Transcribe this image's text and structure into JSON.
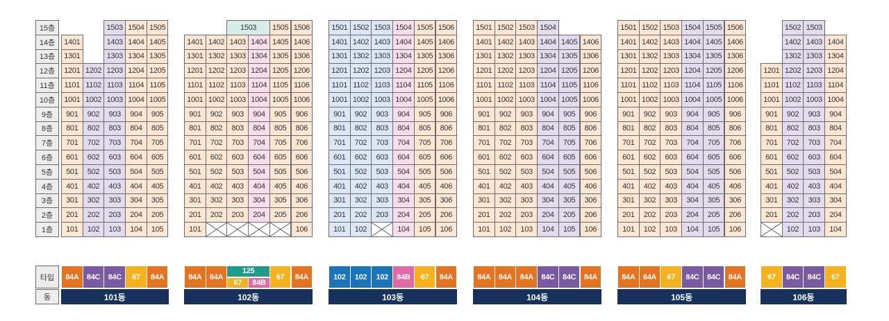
{
  "floor_labels": [
    "15층",
    "14층",
    "13층",
    "12층",
    "11층",
    "10층",
    "9층",
    "8층",
    "7층",
    "6층",
    "5층",
    "4층",
    "3층",
    "2층",
    "1층"
  ],
  "type_row_label": "타입",
  "dong_row_label": "동",
  "colors": {
    "84A": "#e4741f",
    "84C": "#7a5aa0",
    "67": "#f5b21c",
    "84B": "#e06aa7",
    "102": "#1b73b8",
    "125": "#1f9b8b",
    "peach": "#fde6d2",
    "lavender": "#e3dcef",
    "blue": "#dbe7f5",
    "pink": "#f8dded",
    "teal": "#d8ecea"
  },
  "buildings": [
    {
      "dong_label": "101동",
      "columns": [
        {
          "type": "84A",
          "units": [
            "",
            "1401",
            "1301",
            "1201",
            "1101",
            "1001",
            "901",
            "801",
            "701",
            "601",
            "501",
            "401",
            "301",
            "201",
            "101"
          ]
        },
        {
          "type": "84C",
          "units": [
            "",
            "",
            "",
            "1202",
            "1102",
            "1002",
            "902",
            "802",
            "702",
            "602",
            "502",
            "402",
            "302",
            "202",
            "102"
          ]
        },
        {
          "type": "84C",
          "units": [
            "1503",
            "1403",
            "1303",
            "1203",
            "1103",
            "1003",
            "903",
            "803",
            "703",
            "603",
            "503",
            "403",
            "303",
            "203",
            "103"
          ]
        },
        {
          "type": "67",
          "units": [
            "1504",
            "1404",
            "1304",
            "1204",
            "1104",
            "1004",
            "904",
            "804",
            "704",
            "604",
            "504",
            "404",
            "304",
            "204",
            "104"
          ]
        },
        {
          "type": "84A",
          "units": [
            "1505",
            "1405",
            "1305",
            "1205",
            "1105",
            "1005",
            "905",
            "805",
            "705",
            "605",
            "505",
            "405",
            "305",
            "205",
            "105"
          ]
        }
      ]
    },
    {
      "dong_label": "102동",
      "columns": [
        {
          "type": "84A",
          "units": [
            "",
            "1401",
            "1301",
            "1201",
            "1101",
            "1001",
            "901",
            "801",
            "701",
            "601",
            "501",
            "401",
            "301",
            "201",
            "101"
          ]
        },
        {
          "type": "84A",
          "units": [
            "",
            "1402",
            "1302",
            "1202",
            "1102",
            "1002",
            "902",
            "802",
            "702",
            "602",
            "502",
            "402",
            "302",
            "202",
            "X"
          ]
        },
        {
          "type": "67",
          "units": [
            "",
            "1403",
            "1303",
            "1203",
            "1103",
            "1003",
            "903",
            "803",
            "703",
            "603",
            "503",
            "403",
            "303",
            "203",
            "X"
          ]
        },
        {
          "type": "84B",
          "units": [
            "",
            "1404",
            "1304",
            "1204",
            "1104",
            "1004",
            "904",
            "804",
            "704",
            "604",
            "504",
            "404",
            "304",
            "204",
            "X"
          ]
        },
        {
          "type": "67",
          "units": [
            "1505",
            "1405",
            "1305",
            "1205",
            "1105",
            "1005",
            "905",
            "805",
            "705",
            "605",
            "505",
            "405",
            "305",
            "205",
            "X"
          ]
        },
        {
          "type": "84A",
          "units": [
            "1506",
            "1406",
            "1306",
            "1206",
            "1106",
            "1006",
            "906",
            "806",
            "706",
            "606",
            "506",
            "406",
            "306",
            "206",
            "106"
          ]
        }
      ],
      "merged_top": {
        "label": "1503",
        "type": "125"
      },
      "merged_type": {
        "label": "125"
      }
    },
    {
      "dong_label": "103동",
      "columns": [
        {
          "type": "102",
          "units": [
            "1501",
            "1401",
            "1301",
            "1201",
            "1101",
            "1001",
            "901",
            "801",
            "701",
            "601",
            "501",
            "401",
            "301",
            "201",
            "101"
          ]
        },
        {
          "type": "102",
          "units": [
            "1502",
            "1402",
            "1302",
            "1202",
            "1102",
            "1002",
            "902",
            "802",
            "702",
            "602",
            "502",
            "402",
            "302",
            "202",
            "102"
          ]
        },
        {
          "type": "102",
          "units": [
            "1503",
            "1403",
            "1303",
            "1203",
            "1103",
            "1003",
            "903",
            "803",
            "703",
            "603",
            "503",
            "403",
            "303",
            "203",
            "X"
          ]
        },
        {
          "type": "84B",
          "units": [
            "1504",
            "1404",
            "1304",
            "1204",
            "1104",
            "1004",
            "904",
            "804",
            "704",
            "604",
            "504",
            "404",
            "304",
            "204",
            "104"
          ]
        },
        {
          "type": "67",
          "units": [
            "1505",
            "1405",
            "1305",
            "1205",
            "1105",
            "1005",
            "905",
            "805",
            "705",
            "605",
            "505",
            "405",
            "305",
            "205",
            "105"
          ]
        },
        {
          "type": "84A",
          "units": [
            "1506",
            "1406",
            "1306",
            "1206",
            "1106",
            "1006",
            "906",
            "806",
            "706",
            "606",
            "506",
            "406",
            "306",
            "206",
            "106"
          ]
        }
      ]
    },
    {
      "dong_label": "104동",
      "columns": [
        {
          "type": "84A",
          "units": [
            "1501",
            "1401",
            "1301",
            "1201",
            "1101",
            "1001",
            "901",
            "801",
            "701",
            "601",
            "501",
            "401",
            "301",
            "201",
            "101"
          ]
        },
        {
          "type": "84A",
          "units": [
            "1502",
            "1402",
            "1302",
            "1202",
            "1102",
            "1002",
            "902",
            "802",
            "702",
            "602",
            "502",
            "402",
            "302",
            "202",
            "102"
          ]
        },
        {
          "type": "84A",
          "units": [
            "1503",
            "1403",
            "1303",
            "1203",
            "1103",
            "1003",
            "903",
            "803",
            "703",
            "603",
            "503",
            "403",
            "303",
            "203",
            "103"
          ]
        },
        {
          "type": "84C",
          "units": [
            "1504",
            "1404",
            "1304",
            "1204",
            "1104",
            "1004",
            "904",
            "804",
            "704",
            "604",
            "504",
            "404",
            "304",
            "204",
            "104"
          ]
        },
        {
          "type": "84C",
          "units": [
            "",
            "1405",
            "1305",
            "1205",
            "1105",
            "1005",
            "905",
            "805",
            "705",
            "605",
            "505",
            "405",
            "305",
            "205",
            "105"
          ]
        },
        {
          "type": "84A",
          "units": [
            "",
            "1406",
            "1306",
            "1206",
            "1106",
            "1006",
            "906",
            "806",
            "706",
            "606",
            "506",
            "406",
            "306",
            "206",
            "106"
          ]
        }
      ]
    },
    {
      "dong_label": "105동",
      "columns": [
        {
          "type": "84A",
          "units": [
            "1501",
            "1401",
            "1301",
            "1201",
            "1101",
            "1001",
            "901",
            "801",
            "701",
            "601",
            "501",
            "401",
            "301",
            "201",
            "101"
          ]
        },
        {
          "type": "84A",
          "units": [
            "1502",
            "1402",
            "1302",
            "1202",
            "1102",
            "1002",
            "902",
            "802",
            "702",
            "602",
            "502",
            "402",
            "302",
            "202",
            "102"
          ]
        },
        {
          "type": "67",
          "units": [
            "1503",
            "1403",
            "1303",
            "1203",
            "1103",
            "1003",
            "903",
            "803",
            "703",
            "603",
            "503",
            "403",
            "303",
            "203",
            "103"
          ]
        },
        {
          "type": "84C",
          "units": [
            "1504",
            "1404",
            "1304",
            "1204",
            "1104",
            "1004",
            "904",
            "804",
            "704",
            "604",
            "504",
            "404",
            "304",
            "204",
            "104"
          ]
        },
        {
          "type": "84C",
          "units": [
            "1505",
            "1405",
            "1305",
            "1205",
            "1105",
            "1005",
            "905",
            "805",
            "705",
            "605",
            "505",
            "405",
            "305",
            "205",
            "105"
          ]
        },
        {
          "type": "84A",
          "units": [
            "1506",
            "1406",
            "1306",
            "1206",
            "1106",
            "1006",
            "906",
            "806",
            "706",
            "606",
            "506",
            "406",
            "306",
            "206",
            "106"
          ]
        }
      ]
    },
    {
      "dong_label": "106동",
      "columns": [
        {
          "type": "67",
          "units": [
            "",
            "",
            "",
            "1201",
            "1101",
            "1001",
            "901",
            "801",
            "701",
            "601",
            "501",
            "401",
            "301",
            "201",
            "X"
          ]
        },
        {
          "type": "84C",
          "units": [
            "1502",
            "1402",
            "1302",
            "1202",
            "1102",
            "1002",
            "902",
            "802",
            "702",
            "602",
            "502",
            "402",
            "302",
            "202",
            "102"
          ]
        },
        {
          "type": "84C",
          "units": [
            "1503",
            "1403",
            "1303",
            "1203",
            "1103",
            "1003",
            "903",
            "803",
            "703",
            "603",
            "503",
            "403",
            "303",
            "203",
            "103"
          ]
        },
        {
          "type": "67",
          "units": [
            "",
            "1404",
            "1304",
            "1204",
            "1104",
            "1004",
            "904",
            "804",
            "704",
            "604",
            "504",
            "404",
            "304",
            "204",
            "104"
          ]
        }
      ]
    }
  ]
}
